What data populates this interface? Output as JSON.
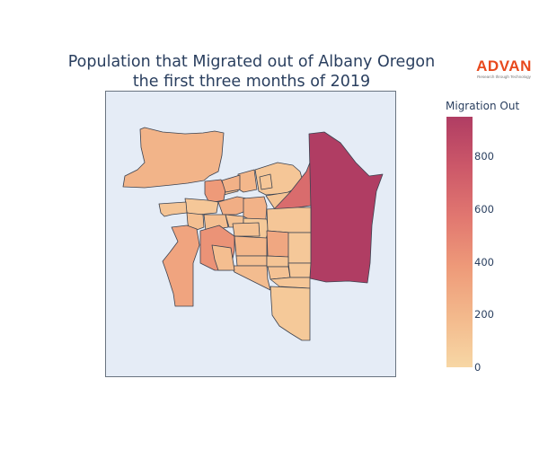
{
  "title_line1": "Population that Migrated out of Albany Oregon",
  "title_line2": "the first three months of 2019",
  "logo": {
    "word": "ADVAN",
    "tagline": "Research through Technology",
    "color": "#e8491d"
  },
  "colorbar": {
    "title": "Migration Out",
    "min": 0,
    "max": 950,
    "ticks": [
      "0",
      "200",
      "400",
      "600",
      "800"
    ],
    "tick_values": [
      0,
      200,
      400,
      600,
      800
    ]
  },
  "chart_data": {
    "type": "choropleth",
    "value_label": "Migration Out",
    "colorscale": [
      "#f7d7a5",
      "#f3b98c",
      "#ee9a79",
      "#e17770",
      "#cc5869",
      "#b03d63"
    ],
    "background": "#e5ecf6",
    "regions": [
      {
        "id": "northwest",
        "value": 220
      },
      {
        "id": "north-mid",
        "value": 200
      },
      {
        "id": "north-right",
        "value": 110
      },
      {
        "id": "north-small",
        "value": 150
      },
      {
        "id": "west-red",
        "value": 380
      },
      {
        "id": "center-left-1",
        "value": 100
      },
      {
        "id": "center-left-2",
        "value": 120
      },
      {
        "id": "center-mid-1",
        "value": 260
      },
      {
        "id": "center-mid-2",
        "value": 230
      },
      {
        "id": "center-mid-3",
        "value": 150
      },
      {
        "id": "center-right-1",
        "value": 120
      },
      {
        "id": "east-red",
        "value": 640
      },
      {
        "id": "east",
        "value": 950
      },
      {
        "id": "center-a",
        "value": 150
      },
      {
        "id": "center-b",
        "value": 130
      },
      {
        "id": "center-c",
        "value": 90
      },
      {
        "id": "center-d",
        "value": 110
      },
      {
        "id": "center-e",
        "value": 140
      },
      {
        "id": "center-f",
        "value": 300
      },
      {
        "id": "center-g",
        "value": 95
      },
      {
        "id": "center-red",
        "value": 420
      },
      {
        "id": "southwest",
        "value": 320
      },
      {
        "id": "south-a",
        "value": 200
      },
      {
        "id": "south-b",
        "value": 150
      },
      {
        "id": "south-c",
        "value": 120
      },
      {
        "id": "south-d",
        "value": 170
      },
      {
        "id": "south-e",
        "value": 130
      },
      {
        "id": "south-f",
        "value": 100
      },
      {
        "id": "south-g",
        "value": 110
      },
      {
        "id": "south-h",
        "value": 160
      },
      {
        "id": "south-tail",
        "value": 90
      },
      {
        "id": "small-1",
        "value": 240
      },
      {
        "id": "small-2",
        "value": 110
      }
    ]
  }
}
